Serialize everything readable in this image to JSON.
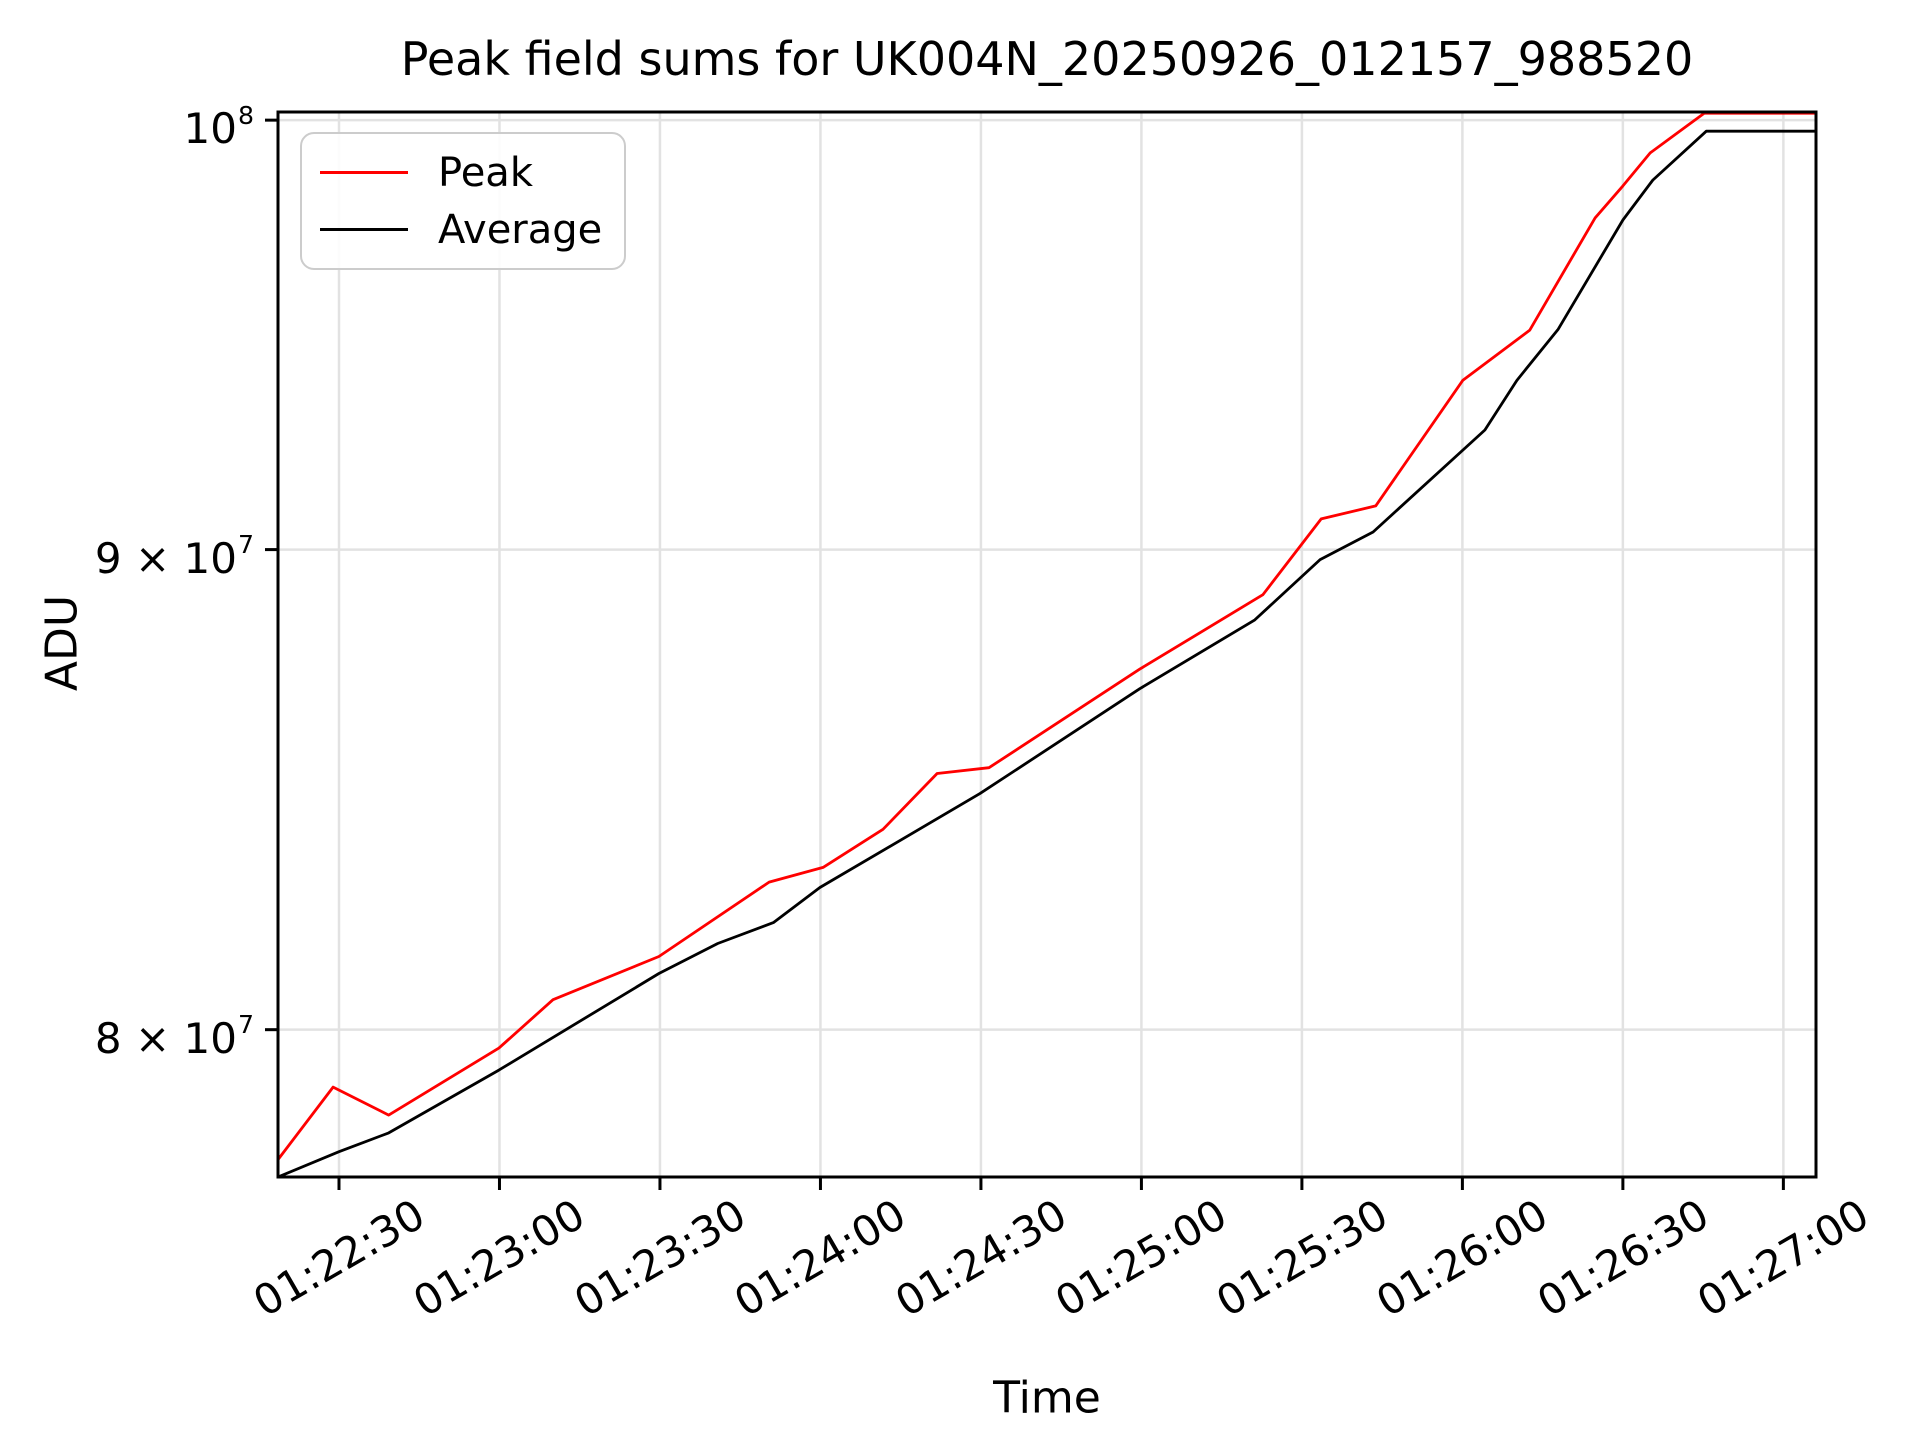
{
  "chart_data": {
    "type": "line",
    "title": "Peak field sums for UK004N_20250926_012157_988520",
    "xlabel": "Time",
    "ylabel": "ADU",
    "y_scale": "log",
    "grid": true,
    "legend_position": "upper left",
    "grid_color": "#e2e2e2",
    "x_unit": "seconds after 01:22:00",
    "xlim": [
      18.6,
      306.1
    ],
    "ylim": [
      77160000,
      100200000
    ],
    "x_ticks": [
      {
        "t": 30,
        "label": "01:22:30"
      },
      {
        "t": 60,
        "label": "01:23:00"
      },
      {
        "t": 90,
        "label": "01:23:30"
      },
      {
        "t": 120,
        "label": "01:24:00"
      },
      {
        "t": 150,
        "label": "01:24:30"
      },
      {
        "t": 180,
        "label": "01:25:00"
      },
      {
        "t": 210,
        "label": "01:25:30"
      },
      {
        "t": 240,
        "label": "01:26:00"
      },
      {
        "t": 270,
        "label": "01:26:30"
      },
      {
        "t": 300,
        "label": "01:27:00"
      }
    ],
    "y_ticks": [
      {
        "value": 100000000,
        "base": "10",
        "exp": "8"
      },
      {
        "value": 90000000,
        "base": "9 × 10",
        "exp": "7"
      },
      {
        "value": 80000000,
        "base": "8 × 10",
        "exp": "7"
      }
    ],
    "series": [
      {
        "name": "Peak",
        "color": "#ff0000",
        "points": [
          [
            18.6,
            77490000
          ],
          [
            28.9,
            78880000
          ],
          [
            39.3,
            78340000
          ],
          [
            59.9,
            79640000
          ],
          [
            70.0,
            80590000
          ],
          [
            89.8,
            81450000
          ],
          [
            110.4,
            82950000
          ],
          [
            120.5,
            83250000
          ],
          [
            131.7,
            84030000
          ],
          [
            141.8,
            85190000
          ],
          [
            151.5,
            85310000
          ],
          [
            179.7,
            87400000
          ],
          [
            202.7,
            89010000
          ],
          [
            213.6,
            90680000
          ],
          [
            223.8,
            90970000
          ],
          [
            240.1,
            93820000
          ],
          [
            252.6,
            94980000
          ],
          [
            264.8,
            97630000
          ],
          [
            270.0,
            98400000
          ],
          [
            275.1,
            99200000
          ],
          [
            285.2,
            100170000
          ],
          [
            306.1,
            100170000
          ]
        ]
      },
      {
        "name": "Average",
        "color": "#000000",
        "points": [
          [
            18.6,
            77160000
          ],
          [
            30.0,
            77640000
          ],
          [
            39.3,
            78000000
          ],
          [
            59.9,
            79210000
          ],
          [
            89.8,
            81110000
          ],
          [
            100.8,
            81710000
          ],
          [
            111.2,
            82130000
          ],
          [
            119.9,
            82840000
          ],
          [
            149.8,
            84770000
          ],
          [
            179.7,
            86980000
          ],
          [
            201.2,
            88460000
          ],
          [
            213.4,
            89780000
          ],
          [
            223.3,
            90390000
          ],
          [
            244.2,
            92680000
          ],
          [
            250.2,
            93820000
          ],
          [
            257.9,
            95000000
          ],
          [
            270.0,
            97580000
          ],
          [
            275.6,
            98540000
          ],
          [
            285.6,
            99730000
          ],
          [
            306.1,
            99730000
          ]
        ]
      }
    ]
  }
}
